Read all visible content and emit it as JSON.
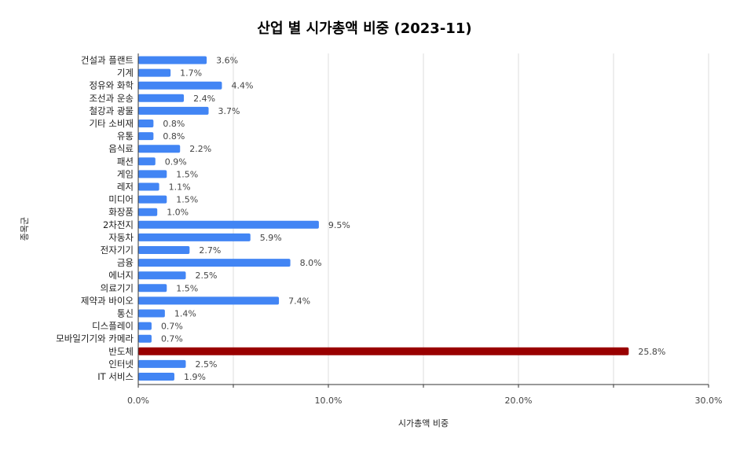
{
  "chart_data": {
    "type": "bar",
    "orientation": "horizontal",
    "title": "산업 별 시가총액 비중 (2023-11)",
    "xlabel": "시가총액 비중",
    "ylabel": "종목군",
    "xlim": [
      0,
      30
    ],
    "x_ticks": [
      "0.0%",
      "10.0%",
      "20.0%",
      "30.0%"
    ],
    "grid": true,
    "legend": "none",
    "categories": [
      "건설과 플랜트",
      "기계",
      "정유와 화학",
      "조선과 운송",
      "철강과 광물",
      "기타 소비재",
      "유통",
      "음식료",
      "패션",
      "게임",
      "레저",
      "미디어",
      "화장품",
      "2차전지",
      "자동차",
      "전자기기",
      "금융",
      "에너지",
      "의료기기",
      "제약과 바이오",
      "통신",
      "디스플레이",
      "모바일기기와 카메라",
      "반도체",
      "인터넷",
      "IT 서비스"
    ],
    "values": [
      3.6,
      1.7,
      4.4,
      2.4,
      3.7,
      0.8,
      0.8,
      2.2,
      0.9,
      1.5,
      1.1,
      1.5,
      1.0,
      9.5,
      5.9,
      2.7,
      8.0,
      2.5,
      1.5,
      7.4,
      1.4,
      0.7,
      0.7,
      25.8,
      2.5,
      1.9
    ],
    "value_labels": [
      "3.6%",
      "1.7%",
      "4.4%",
      "2.4%",
      "3.7%",
      "0.8%",
      "0.8%",
      "2.2%",
      "0.9%",
      "1.5%",
      "1.1%",
      "1.5%",
      "1.0%",
      "9.5%",
      "5.9%",
      "2.7%",
      "8.0%",
      "2.5%",
      "1.5%",
      "7.4%",
      "1.4%",
      "0.7%",
      "0.7%",
      "25.8%",
      "2.5%",
      "1.9%"
    ],
    "highlight_category": "반도체",
    "colors": {
      "bar": "#4285f4",
      "highlight": "#990000",
      "grid": "#dddddd",
      "axis": "#333333"
    }
  }
}
